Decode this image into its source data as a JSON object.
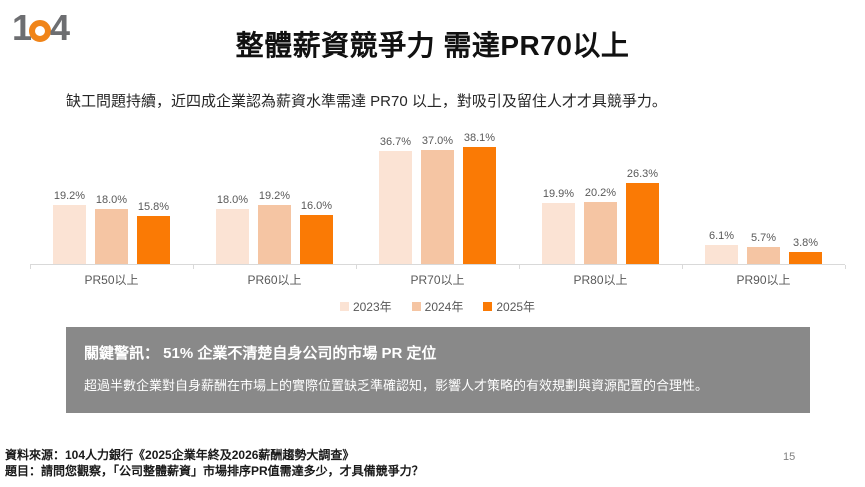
{
  "logo": {
    "one": "1",
    "four": "4"
  },
  "header": {
    "title": "整體薪資競爭力 需達PR70以上",
    "subtitle": "缺工問題持續，近四成企業認為薪資水準需達 PR70 以上，對吸引及留住人才才具競爭力。"
  },
  "chart_data": {
    "type": "bar",
    "title": "",
    "xlabel": "",
    "ylabel": "",
    "categories": [
      "PR50以上",
      "PR60以上",
      "PR70以上",
      "PR80以上",
      "PR90以上"
    ],
    "series": [
      {
        "name": "2023年",
        "color": "#FBE3D4",
        "values": [
          19.2,
          18.0,
          36.7,
          19.9,
          6.1
        ]
      },
      {
        "name": "2024年",
        "color": "#F5C5A3",
        "values": [
          18.0,
          19.2,
          37.0,
          20.2,
          5.7
        ]
      },
      {
        "name": "2025年",
        "color": "#FA7A05",
        "values": [
          15.8,
          16.0,
          38.1,
          26.3,
          3.8
        ]
      }
    ],
    "value_suffix": "%",
    "value_decimals": 1,
    "ylim": [
      0,
      40
    ],
    "grid": false,
    "legend_position": "bottom",
    "axis_color": "#d9d9d9",
    "label_color": "#595959"
  },
  "alert": {
    "headline": "關鍵警訊： 51% 企業不清楚自身公司的市場 PR 定位",
    "body": "超過半數企業對自身薪酬在市場上的實際位置缺乏準確認知，影響人才策略的有效規劃與資源配置的合理性。"
  },
  "footer": {
    "source": "資料來源：104人力銀行《2025企業年終及2026薪酬趨勢大調查》",
    "question": "題目：請問您觀察，「公司整體薪資」市場排序PR值需達多少，才具備競爭力？",
    "page_number": "15"
  }
}
